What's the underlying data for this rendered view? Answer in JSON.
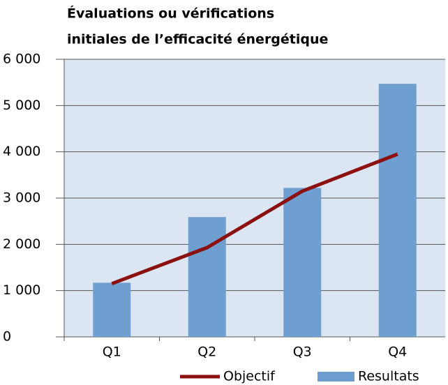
{
  "chart_data": {
    "type": "bar_line",
    "title_lines": [
      "Évaluations ou vérifications",
      "initiales de l’efficacité énergétique"
    ],
    "categories": [
      "Q1",
      "Q2",
      "Q3",
      "Q4"
    ],
    "series": [
      {
        "name": "Resultats",
        "type": "bar",
        "color": "#6f9fd0",
        "values": [
          1170,
          2590,
          3220,
          5470
        ]
      },
      {
        "name": "Objectif",
        "type": "line",
        "color": "#8b1010",
        "values": [
          1150,
          1930,
          3150,
          3950
        ]
      }
    ],
    "ylim": [
      0,
      6000
    ],
    "yticks": [
      0,
      {
        "value": 1000,
        "label": "1 000"
      },
      {
        "value": 2000,
        "label": "2 000"
      },
      {
        "value": 3000,
        "label": "3 000"
      },
      {
        "value": 4000,
        "label": "4 000"
      },
      {
        "value": 5000,
        "label": "5 000"
      },
      {
        "value": 6000,
        "label": "6 000"
      }
    ],
    "grid": true,
    "plot_background": "#dce6f2",
    "legend": "bottom"
  }
}
